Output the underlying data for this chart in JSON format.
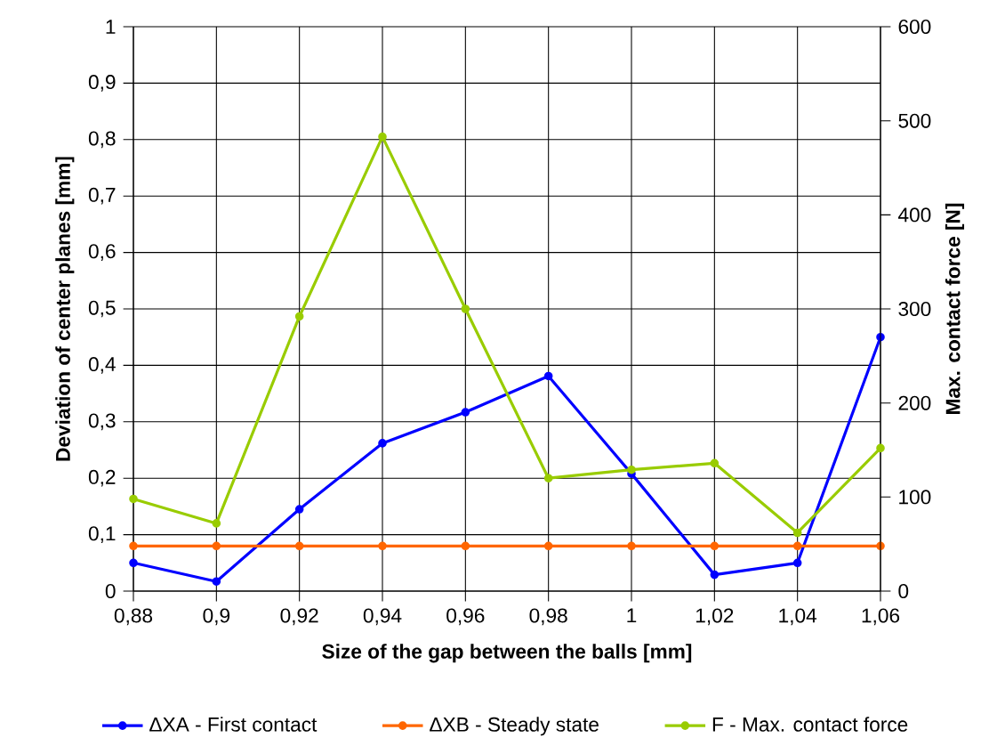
{
  "chart_data": {
    "type": "line",
    "xlabel": "Size of the gap between the balls [mm]",
    "ylabel": "Deviation of center planes  [mm]",
    "y2label": "Max. contact force [N]",
    "x": [
      0.88,
      0.9,
      0.92,
      0.94,
      0.96,
      0.98,
      1,
      1.02,
      1.04,
      1.06
    ],
    "series": [
      {
        "name": "ΔXA - First contact",
        "color": "#0000ff",
        "values": [
          0.05,
          0.017,
          0.145,
          0.262,
          0.317,
          0.381,
          0.208,
          0.029,
          0.05,
          0.45
        ]
      },
      {
        "name": "ΔXB - Steady state",
        "color": "#ff6600",
        "values": [
          0.08,
          0.08,
          0.08,
          0.08,
          0.08,
          0.08,
          0.08,
          0.08,
          0.08,
          0.08
        ]
      },
      {
        "name": "F - Max. contact force",
        "color": "#99cc00",
        "axis": "y2",
        "values": [
          98,
          72,
          292,
          483,
          300,
          120,
          129,
          136,
          62,
          152
        ]
      }
    ],
    "xlim": [
      0.88,
      1.06
    ],
    "xticks": [
      {
        "value": 0.88,
        "label": "0,88"
      },
      {
        "value": 0.9,
        "label": "0,9"
      },
      {
        "value": 0.92,
        "label": "0,92"
      },
      {
        "value": 0.94,
        "label": "0,94"
      },
      {
        "value": 0.96,
        "label": "0,96"
      },
      {
        "value": 0.98,
        "label": "0,98"
      },
      1,
      {
        "value": 1.02,
        "label": "1,02"
      },
      {
        "value": 1.04,
        "label": "1,04"
      },
      {
        "value": 1.06,
        "label": "1,06"
      }
    ],
    "ylim": [
      0,
      1
    ],
    "yticks": [
      0,
      {
        "value": 0.1,
        "label": "0,1"
      },
      {
        "value": 0.2,
        "label": "0,2"
      },
      {
        "value": 0.3,
        "label": "0,3"
      },
      {
        "value": 0.4,
        "label": "0,4"
      },
      {
        "value": 0.5,
        "label": "0,5"
      },
      {
        "value": 0.6,
        "label": "0,6"
      },
      {
        "value": 0.7,
        "label": "0,7"
      },
      {
        "value": 0.8,
        "label": "0,8"
      },
      {
        "value": 0.9,
        "label": "0,9"
      },
      1
    ],
    "y2lim": [
      0,
      600
    ],
    "y2ticks": [
      0,
      100,
      200,
      300,
      400,
      500,
      600
    ],
    "grid": true,
    "legend": "bottom",
    "marker": "circle",
    "line_style": "solid"
  }
}
